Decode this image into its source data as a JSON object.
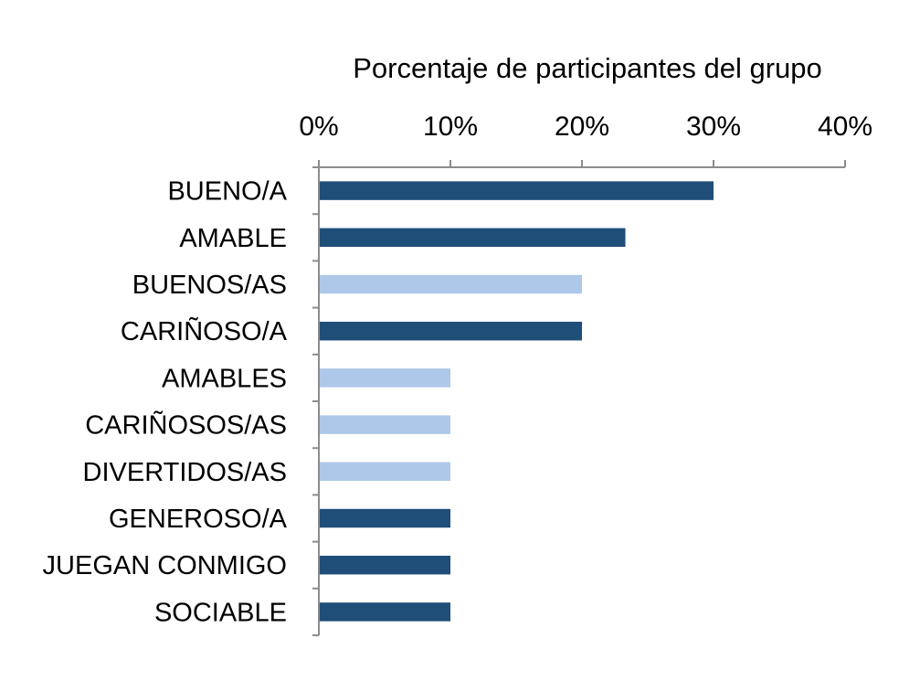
{
  "chart_data": {
    "type": "bar",
    "orientation": "horizontal",
    "title": "",
    "xlabel": "Porcentaje de participantes del grupo",
    "x_axis_position": "top",
    "xlim": [
      0,
      40
    ],
    "xticks": [
      "0%",
      "10%",
      "20%",
      "30%",
      "40%"
    ],
    "xtick_values": [
      0,
      10,
      20,
      30,
      40
    ],
    "grid": false,
    "legend": "none",
    "colors": {
      "dark": "#1f4e79",
      "light": "#adc8e8"
    },
    "categories": [
      "BUENO/A",
      "AMABLE",
      "BUENOS/AS",
      "CARIÑOSO/A",
      "AMABLES",
      "CARIÑOSOS/AS",
      "DIVERTIDOS/AS",
      "GENEROSO/A",
      "JUEGAN CONMIGO",
      "SOCIABLE"
    ],
    "values": [
      30,
      23.3,
      20,
      20,
      10,
      10,
      10,
      10,
      10,
      10
    ],
    "bar_colors": [
      "dark",
      "dark",
      "light",
      "dark",
      "light",
      "light",
      "light",
      "dark",
      "dark",
      "dark"
    ]
  }
}
